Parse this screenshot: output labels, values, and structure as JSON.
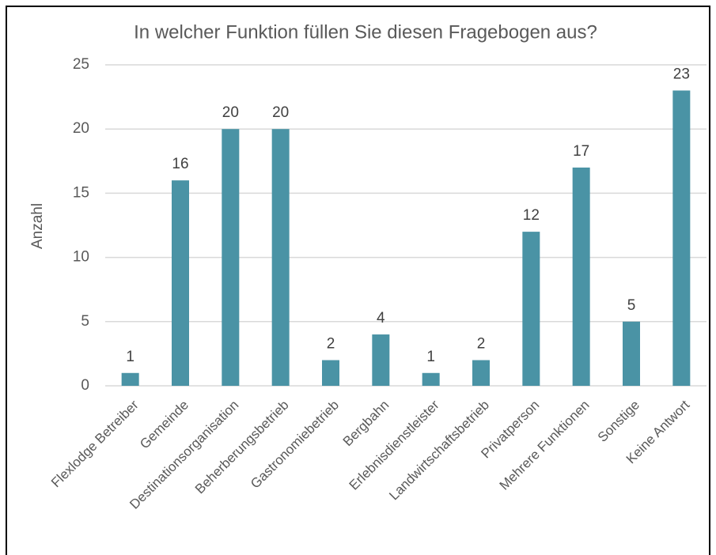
{
  "chart_data": {
    "type": "bar",
    "title": "In welcher Funktion füllen Sie diesen Fragebogen aus?",
    "y_label": "Anzahl",
    "categories": [
      "Flexlodge Betreiber",
      "Gemeinde",
      "Destinationsorganisation",
      "Beherberungsbetrieb",
      "Gastronomiebetrieb",
      "Bergbahn",
      "Erlebnisdienstleister",
      "Landwirtschaftsbetrieb",
      "Privatperson",
      "Mehrere Funktionen",
      "Sonstige",
      "Keine Antwort"
    ],
    "values": [
      1,
      16,
      20,
      20,
      2,
      4,
      1,
      2,
      12,
      17,
      5,
      23
    ],
    "color": "#4a93a5",
    "ylim": [
      0,
      25
    ],
    "yticks": [
      0,
      5,
      10,
      15,
      20,
      25
    ],
    "grid": true,
    "data_labels": true
  }
}
